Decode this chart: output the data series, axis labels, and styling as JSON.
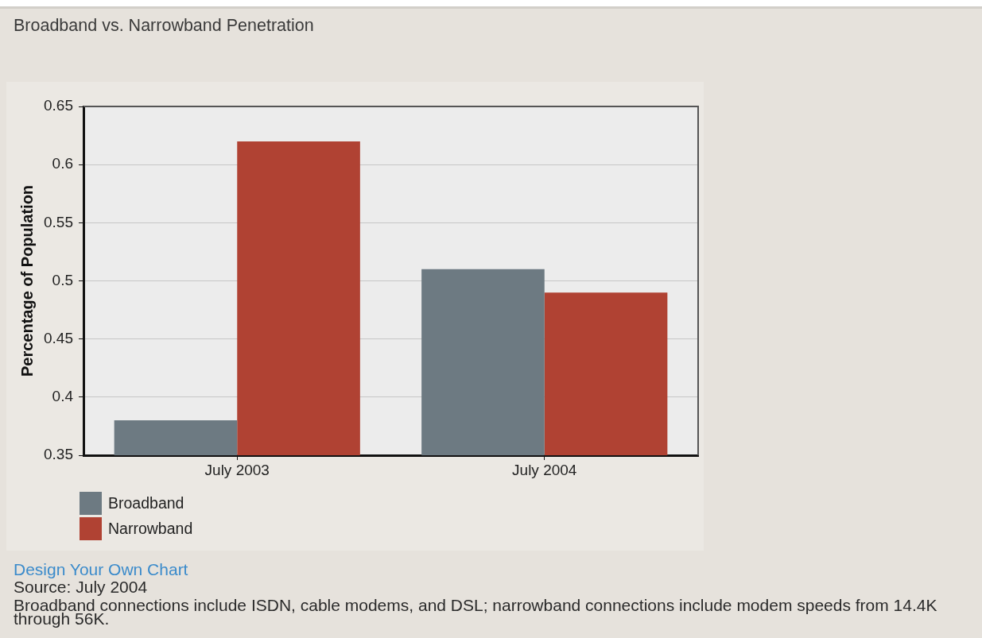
{
  "chart_data": {
    "type": "bar",
    "title": "Broadband vs. Narrowband Penetration",
    "ylabel": "Percentage of Population",
    "categories": [
      "July 2003",
      "July 2004"
    ],
    "series": [
      {
        "name": "Broadband",
        "color": "#6d7a82",
        "values": [
          0.38,
          0.51
        ]
      },
      {
        "name": "Narrowband",
        "color": "#b04233",
        "values": [
          0.62,
          0.49
        ]
      }
    ],
    "ylim": [
      0.35,
      0.65
    ],
    "yticks": [
      0.35,
      0.4,
      0.45,
      0.5,
      0.55,
      0.6,
      0.65
    ],
    "grid": "y",
    "legend": "bottom left",
    "annotations": [
      "Design Your Own Chart",
      "Source: July 2004",
      "Broadband connections include ISDN, cable modems, and DSL; narrowband connections include modem speeds from 14.4K through 56K."
    ]
  }
}
